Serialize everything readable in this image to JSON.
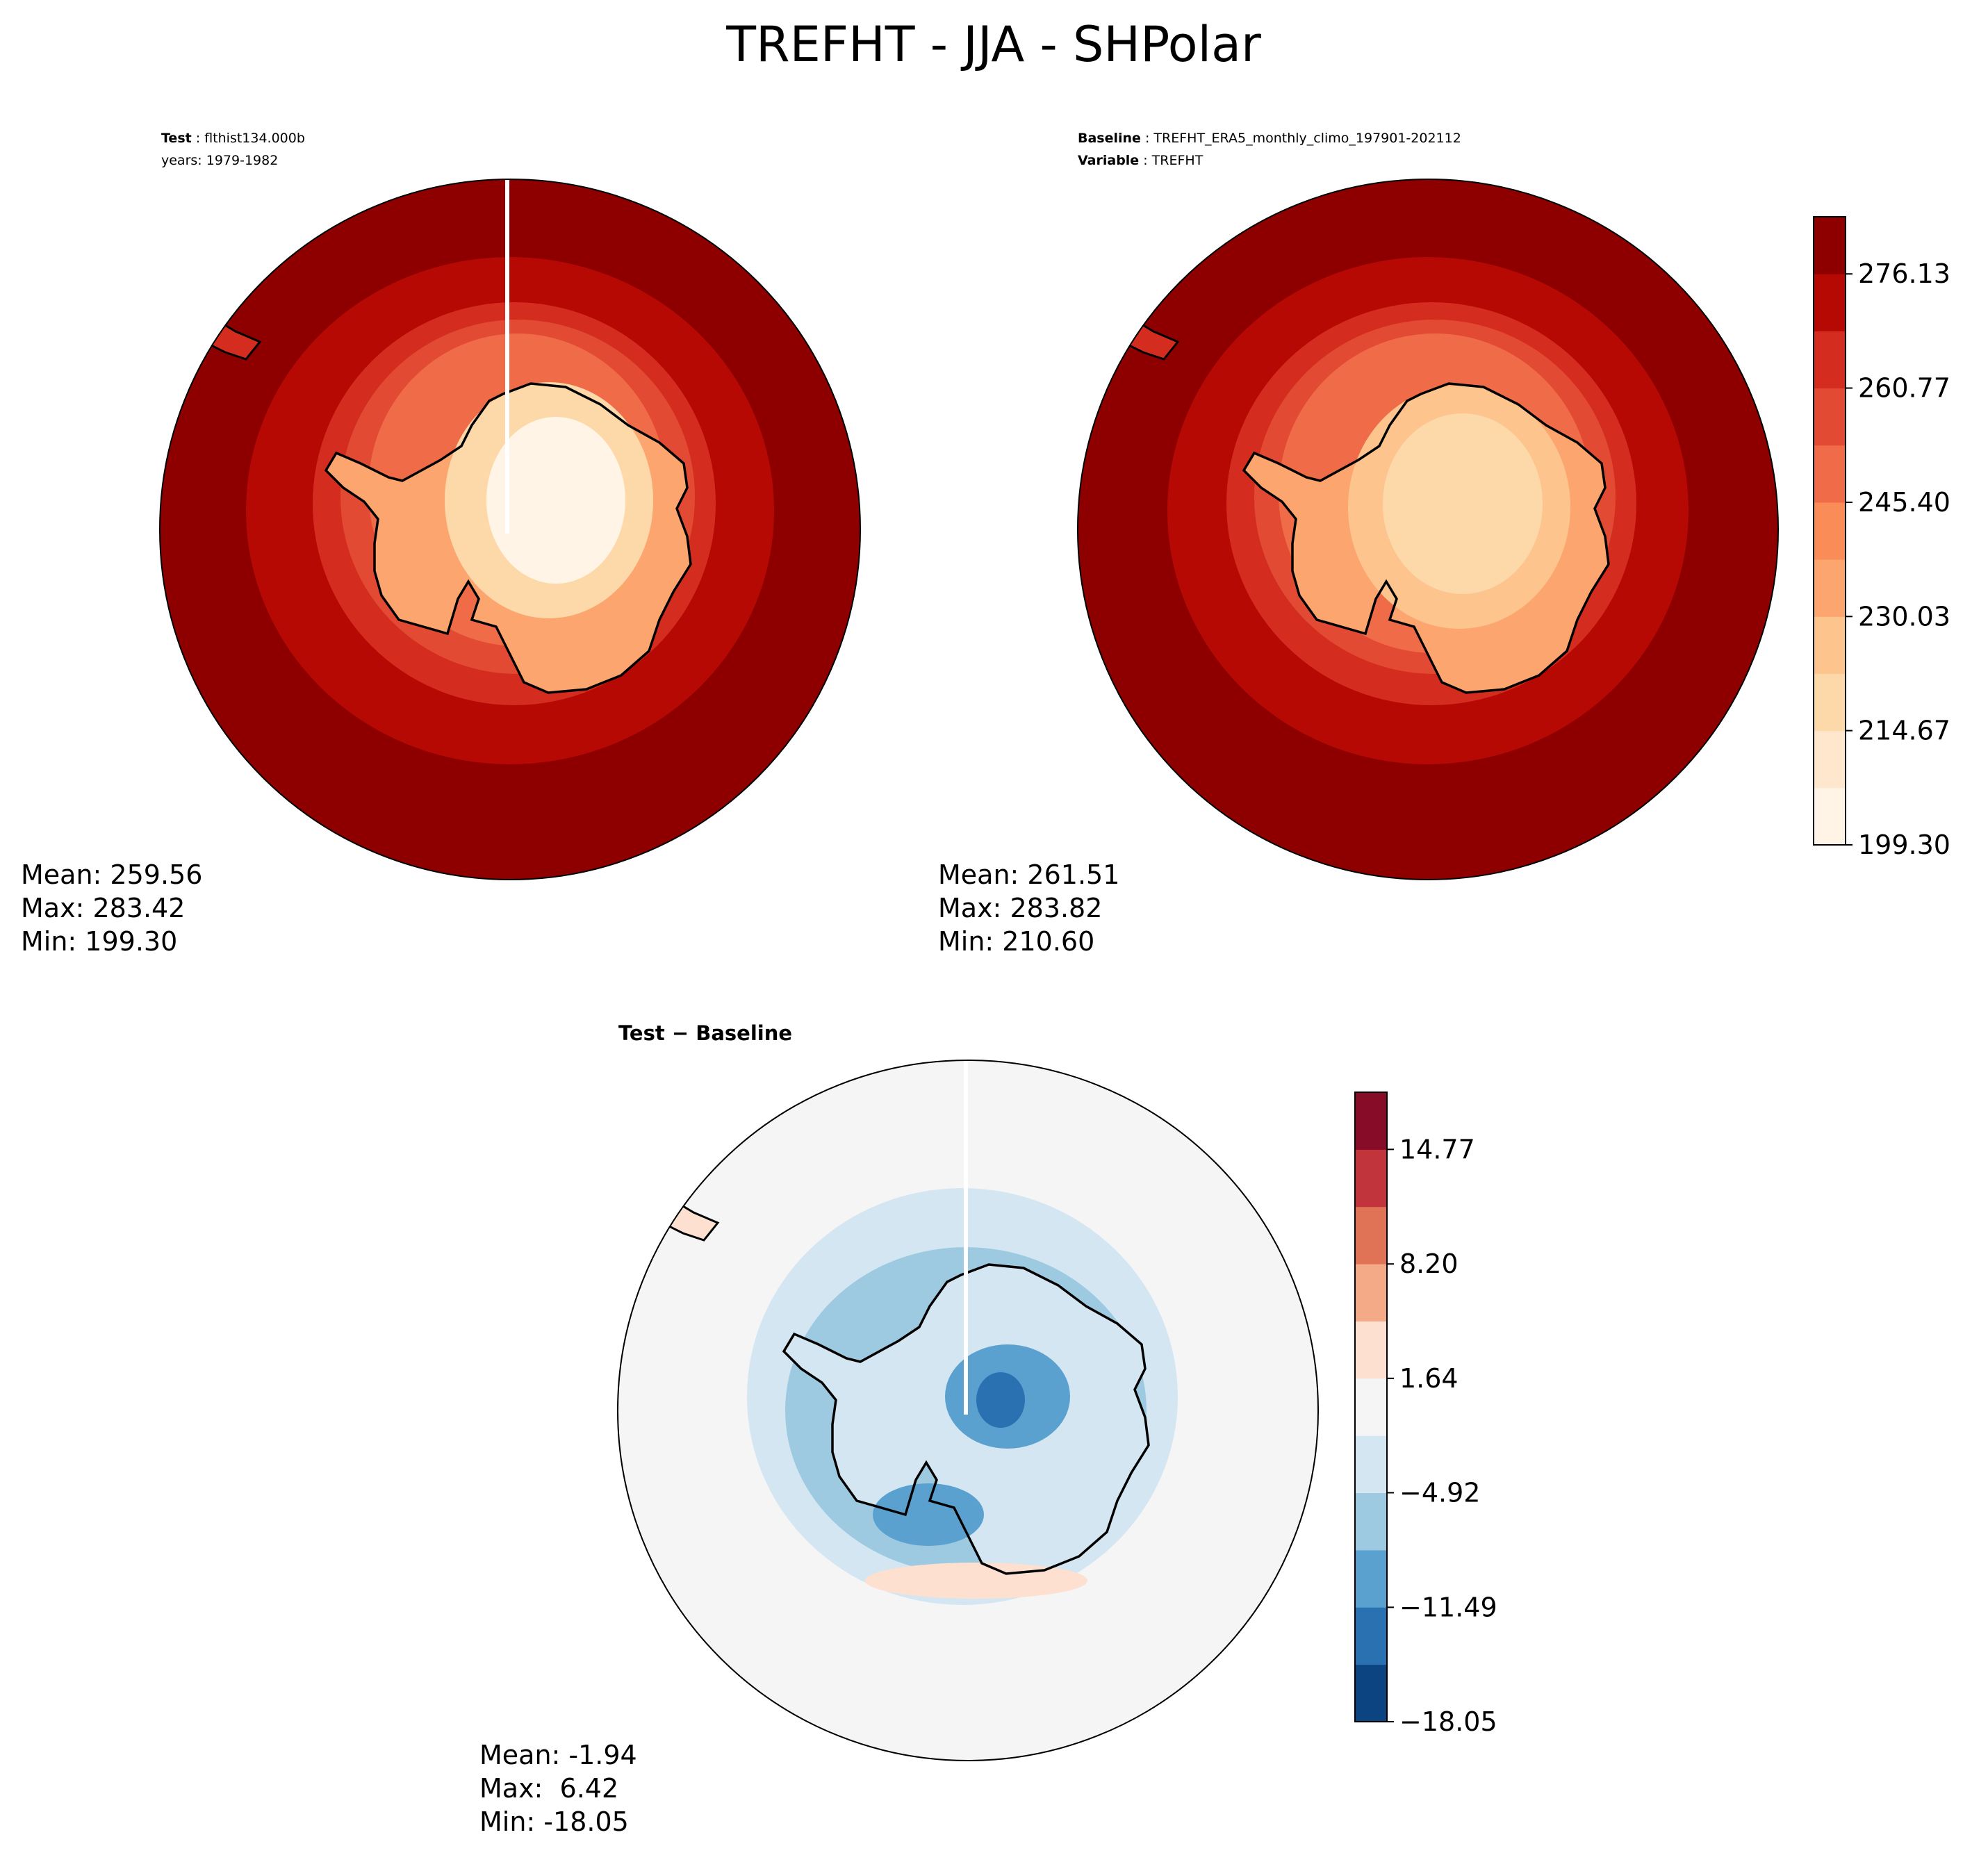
{
  "figure": {
    "title": "TREFHT - JJA - SHPolar"
  },
  "panels": {
    "test": {
      "label_bold": "Test",
      "label_value": "flthist134.000b",
      "years": "years: 1979-1982",
      "mean": "Mean: 259.56",
      "max": "Max: 283.42",
      "min": "Min: 199.30"
    },
    "baseline": {
      "label_bold": "Baseline",
      "label_value": "TREFHT_ERA5_monthly_climo_197901-202112",
      "variable_bold": "Variable",
      "variable_value": "TREFHT",
      "mean": "Mean: 261.51",
      "max": "Max: 283.82",
      "min": "Min: 210.60"
    },
    "diff": {
      "title": "Test − Baseline",
      "mean": "Mean: -1.94",
      "max": "Max:  6.42",
      "min": "Min: -18.05"
    }
  },
  "colorbars": {
    "temperature": {
      "colors": [
        "#fff5eb",
        "#fee6ce",
        "#fdd0a2",
        "#fdbf86",
        "#fdae6b",
        "#fd8d3c",
        "#f16913",
        "#e2492a",
        "#cb2b1b",
        "#b30000",
        "#8b0000"
      ],
      "display_colors": [
        "#fff4e6",
        "#fee7cc",
        "#fdd8a8",
        "#fdc48e",
        "#fca56e",
        "#f98c57",
        "#f06b48",
        "#e24a33",
        "#d42d1f",
        "#b70903",
        "#8e0000"
      ],
      "ticks": [
        "199.30",
        "214.67",
        "230.03",
        "245.40",
        "260.77",
        "276.13"
      ],
      "tick_values": [
        199.3,
        214.67,
        230.03,
        245.4,
        260.77,
        276.13
      ],
      "range": [
        199.3,
        283.82
      ]
    },
    "difference": {
      "colors": [
        "#0c4481",
        "#2a71b2",
        "#5aa1cf",
        "#9ecae1",
        "#d4e6f2",
        "#f5f5f5",
        "#fde0d0",
        "#f4a987",
        "#e07256",
        "#c1343b",
        "#860c27"
      ],
      "ticks": [
        "−18.05",
        "−11.49",
        "−4.92",
        "1.64",
        "8.20",
        "14.77"
      ],
      "tick_values": [
        -18.05,
        -11.49,
        -4.92,
        1.64,
        8.2,
        14.77
      ],
      "range": [
        -18.05,
        18.05
      ]
    }
  }
}
